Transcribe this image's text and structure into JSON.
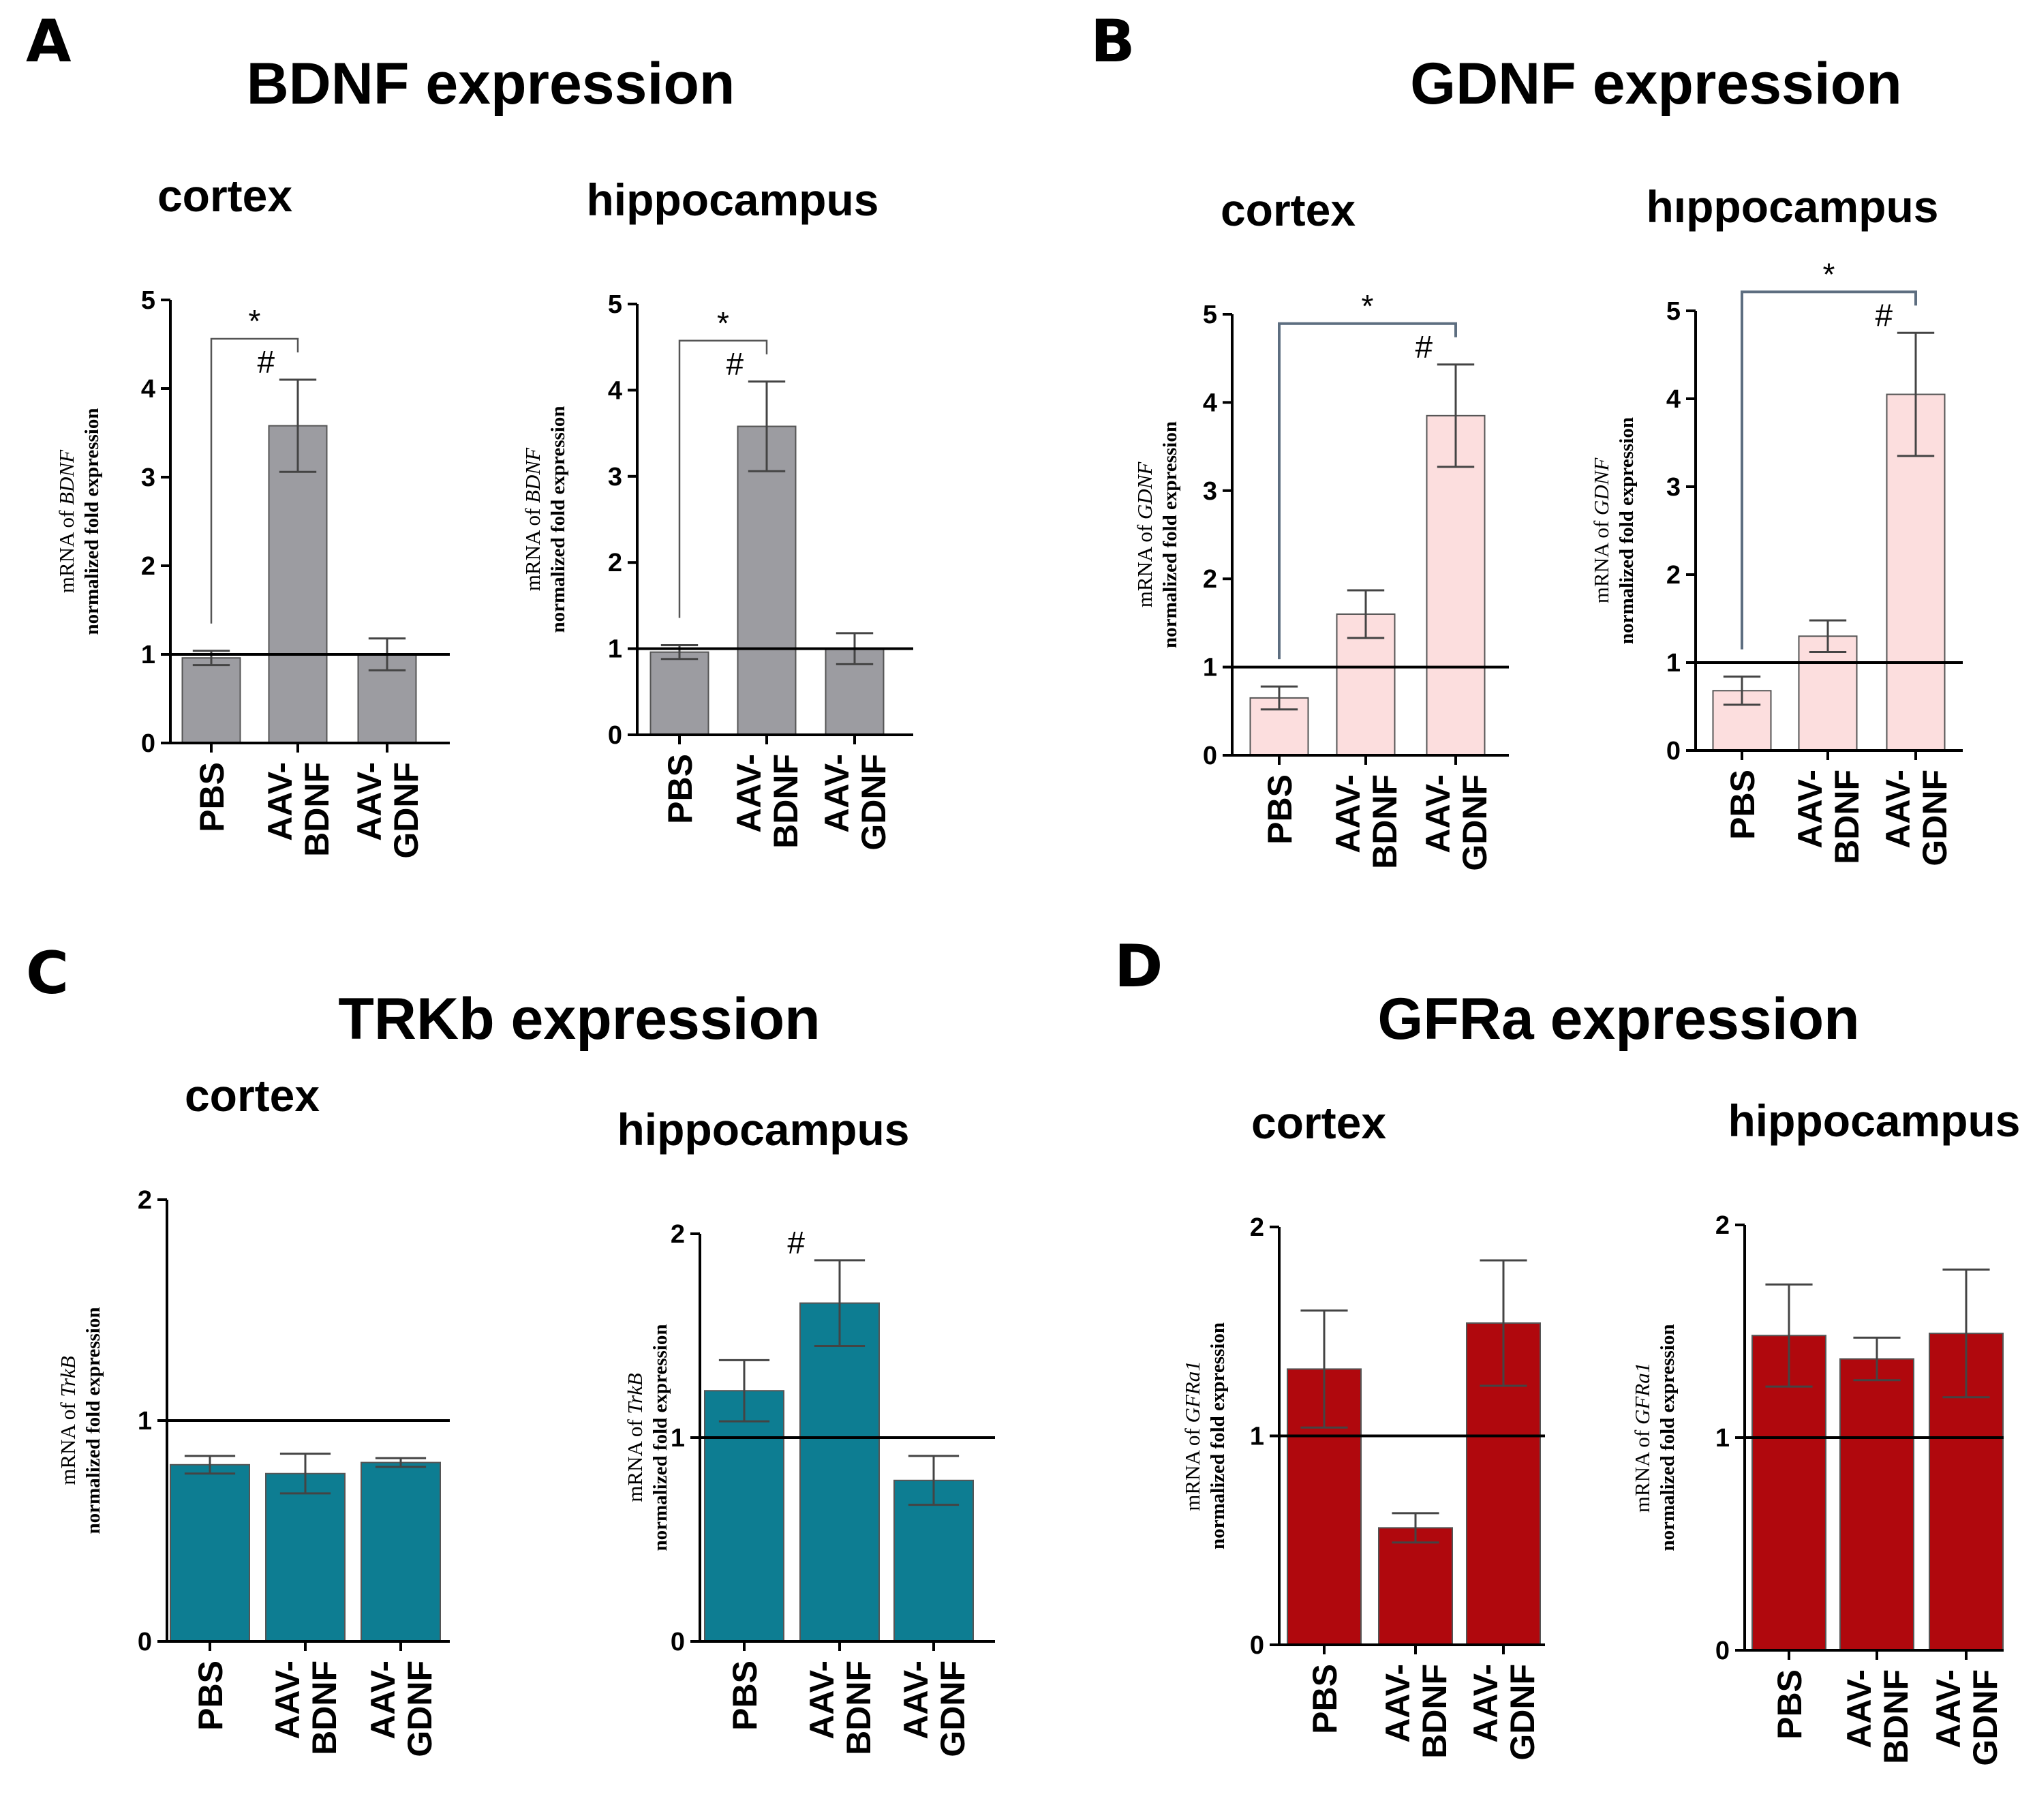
{
  "panels": [
    {
      "letter": "A",
      "title": "BDNF expression"
    },
    {
      "letter": "B",
      "title": "GDNF expression"
    },
    {
      "letter": "C",
      "title": "TRKb expression"
    },
    {
      "letter": "D",
      "title": "GFRa expression"
    }
  ],
  "colors": {
    "gray": "#9c9ca1",
    "pink": "#fcdede",
    "teal": "#0d7d92",
    "red": "#b0080d",
    "bracket": "#5d6e80"
  },
  "chart_data": [
    {
      "type": "bar",
      "panel": "A",
      "title": "cortex",
      "categories": [
        [
          "PBS"
        ],
        [
          "AAV-",
          "BDNF"
        ],
        [
          "AAV-",
          "GDNF"
        ]
      ],
      "values": [
        0.96,
        3.58,
        1.0
      ],
      "errors": [
        0.08,
        0.52,
        0.18
      ],
      "ylim": [
        0,
        5
      ],
      "yticks": [
        "0",
        "1",
        "2",
        "3",
        "4",
        "5"
      ],
      "ylabel": [
        "mRNA of ",
        "BDNF"
      ],
      "ylabel2": "normalized fold expression",
      "reference_line": 1,
      "color": "gray",
      "significance": [
        {
          "from": 0,
          "to": 1,
          "label": "*"
        }
      ],
      "markers": [
        {
          "bar": 1,
          "label": "#"
        }
      ]
    },
    {
      "type": "bar",
      "panel": "A",
      "title": "hippocampus",
      "categories": [
        [
          "PBS"
        ],
        [
          "AAV-",
          "BDNF"
        ],
        [
          "AAV-",
          "GDNF"
        ]
      ],
      "values": [
        0.96,
        3.58,
        1.0
      ],
      "errors": [
        0.08,
        0.52,
        0.18
      ],
      "ylim": [
        0,
        5
      ],
      "yticks": [
        "0",
        "1",
        "2",
        "3",
        "4",
        "5"
      ],
      "ylabel": [
        "mRNA of ",
        "BDNF"
      ],
      "ylabel2": "normalized fold expression",
      "reference_line": 1,
      "color": "gray",
      "significance": [
        {
          "from": 0,
          "to": 1,
          "label": "*"
        }
      ],
      "markers": [
        {
          "bar": 1,
          "label": "#"
        }
      ]
    },
    {
      "type": "bar",
      "panel": "B",
      "title": "cortex",
      "categories": [
        [
          "PBS"
        ],
        [
          "AAV-",
          "BDNF"
        ],
        [
          "AAV-",
          "GDNF"
        ]
      ],
      "values": [
        0.65,
        1.6,
        3.85
      ],
      "errors": [
        0.13,
        0.27,
        0.58
      ],
      "ylim": [
        0,
        5
      ],
      "yticks": [
        "0",
        "1",
        "2",
        "3",
        "4",
        "5"
      ],
      "ylabel": [
        "mRNA of ",
        "GDNF"
      ],
      "ylabel2": "normalized fold expression",
      "reference_line": 1,
      "color": "pink",
      "significance": [
        {
          "from": 0,
          "to": 2,
          "label": "*"
        }
      ],
      "markers": [
        {
          "bar": 2,
          "label": "#"
        }
      ]
    },
    {
      "type": "bar",
      "panel": "B",
      "title": "hıppocampus",
      "categories": [
        [
          "PBS"
        ],
        [
          "AAV-",
          "BDNF"
        ],
        [
          "AAV-",
          "GDNF"
        ]
      ],
      "values": [
        0.68,
        1.3,
        4.05
      ],
      "errors": [
        0.16,
        0.18,
        0.7
      ],
      "ylim": [
        0,
        5
      ],
      "yticks": [
        "0",
        "1",
        "2",
        "3",
        "4",
        "5"
      ],
      "ylabel": [
        "mRNA of ",
        "GDNF"
      ],
      "ylabel2": "normalized fold expression",
      "reference_line": 1,
      "color": "pink",
      "significance": [
        {
          "from": 0,
          "to": 2,
          "label": "*"
        }
      ],
      "markers": [
        {
          "bar": 2,
          "label": "#"
        }
      ]
    },
    {
      "type": "bar",
      "panel": "C",
      "title": "cortex",
      "categories": [
        [
          "PBS"
        ],
        [
          "AAV-",
          "BDNF"
        ],
        [
          "AAV-",
          "GDNF"
        ]
      ],
      "values": [
        0.8,
        0.76,
        0.81
      ],
      "errors": [
        0.04,
        0.09,
        0.02
      ],
      "ylim": [
        0,
        2
      ],
      "yticks": [
        "0",
        "1",
        "2"
      ],
      "ylabel": [
        "mRNA of ",
        "TrkB"
      ],
      "ylabel2": "normalized fold expression",
      "reference_line": 1,
      "color": "teal",
      "significance": [],
      "markers": []
    },
    {
      "type": "bar",
      "panel": "C",
      "title": "hippocampus",
      "categories": [
        [
          "PBS"
        ],
        [
          "AAV-",
          "BDNF"
        ],
        [
          "AAV-",
          "GDNF"
        ]
      ],
      "values": [
        1.23,
        1.66,
        0.79
      ],
      "errors": [
        0.15,
        0.21,
        0.12
      ],
      "ylim": [
        0,
        2
      ],
      "yticks": [
        "0",
        "1",
        "2"
      ],
      "ylabel": [
        "mRNA of ",
        "TrkB"
      ],
      "ylabel2": "normalized fold expression",
      "reference_line": 1,
      "color": "teal",
      "significance": [],
      "markers": [
        {
          "bar": 1,
          "label": "#"
        }
      ]
    },
    {
      "type": "bar",
      "panel": "D",
      "title": "cortex",
      "categories": [
        [
          "PBS"
        ],
        [
          "AAV-",
          "BDNF"
        ],
        [
          "AAV-",
          "GDNF"
        ]
      ],
      "values": [
        1.32,
        0.56,
        1.54
      ],
      "errors": [
        0.28,
        0.07,
        0.3
      ],
      "ylim": [
        0,
        2
      ],
      "yticks": [
        "0",
        "1",
        "2"
      ],
      "ylabel": [
        "mRNA of ",
        "GFRa1"
      ],
      "ylabel2": "normalized fold expression",
      "reference_line": 1,
      "color": "red",
      "significance": [],
      "markers": []
    },
    {
      "type": "bar",
      "panel": "D",
      "title": "hippocampus",
      "categories": [
        [
          "PBS"
        ],
        [
          "AAV-",
          "BDNF"
        ],
        [
          "AAV-",
          "GDNF"
        ]
      ],
      "values": [
        1.48,
        1.37,
        1.49
      ],
      "errors": [
        0.24,
        0.1,
        0.3
      ],
      "ylim": [
        0,
        2
      ],
      "yticks": [
        "0",
        "1",
        "2"
      ],
      "ylabel": [
        "mRNA of ",
        "GFRa1"
      ],
      "ylabel2": "normalized fold expression",
      "reference_line": 1,
      "color": "red",
      "significance": [],
      "markers": []
    }
  ]
}
